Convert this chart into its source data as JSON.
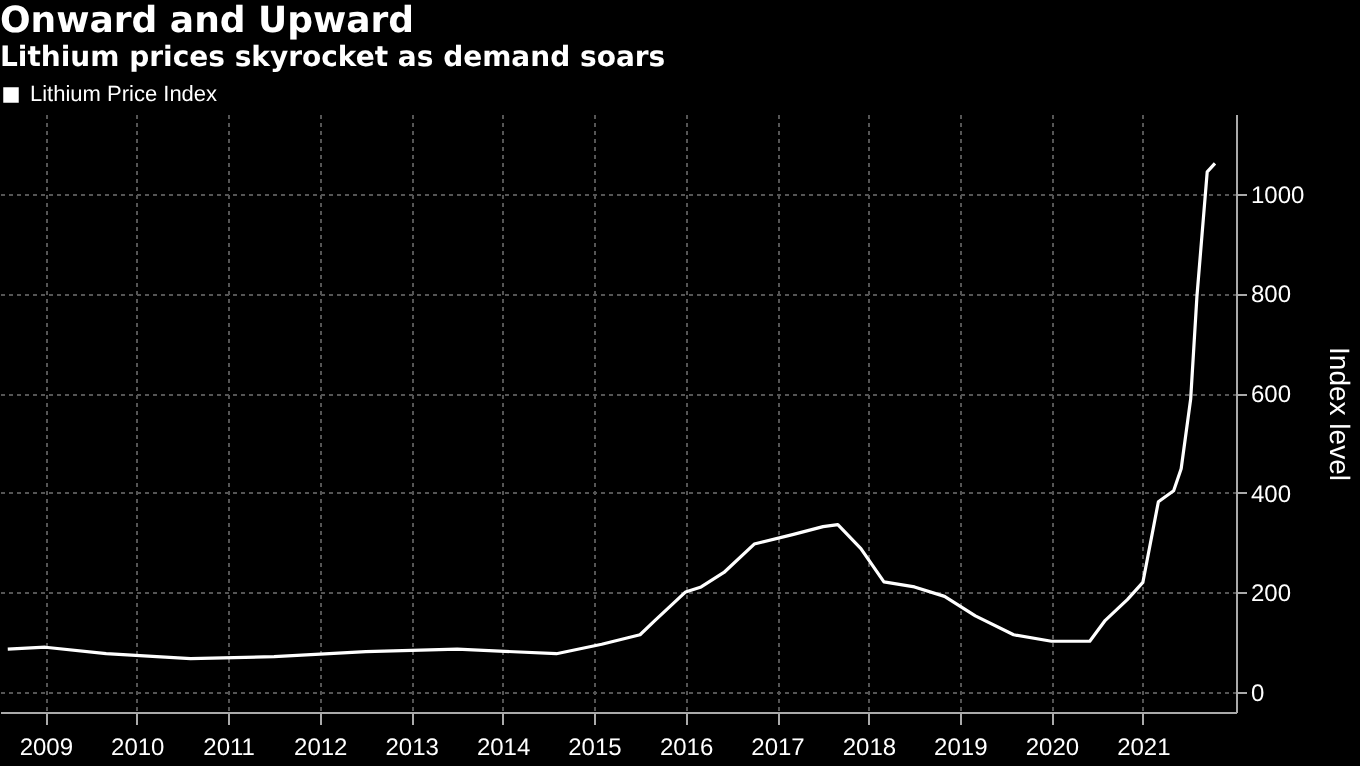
{
  "chart_data": {
    "type": "line",
    "title": "Onward and Upward",
    "subtitle": "Lithium prices skyrocket as demand soars",
    "ylabel": "Index level",
    "x": [
      "2009-02",
      "2009-07",
      "2010-03",
      "2011-02",
      "2012-01",
      "2013-01",
      "2014-01",
      "2015-02",
      "2015-08",
      "2016-01",
      "2016-03",
      "2016-07",
      "2016-09",
      "2016-12",
      "2017-04",
      "2017-09",
      "2018-01",
      "2018-03",
      "2018-06",
      "2018-09",
      "2019-01",
      "2019-05",
      "2019-09",
      "2020-02",
      "2020-07",
      "2020-12",
      "2021-02",
      "2021-05",
      "2021-07",
      "2021-09",
      "2021-11",
      "2021-12",
      "2022-01-08",
      "2022-02-02",
      "2022-03-15",
      "2022-04-15"
    ],
    "series": [
      {
        "name": "Lithium Price Index",
        "color": "#ffffff",
        "values": [
          86,
          90,
          77,
          67,
          71,
          81,
          86,
          77,
          96,
          115,
          144,
          201,
          211,
          240,
          297,
          316,
          332,
          336,
          288,
          221,
          211,
          192,
          153,
          115,
          102,
          102,
          144,
          186,
          220,
          382,
          404,
          448,
          588,
          794,
          1044,
          1061
        ]
      }
    ],
    "xlim": [
      "2009-01-01",
      "2022-07-08"
    ],
    "xticks": [
      {
        "value": "2009-07-01",
        "label": "2009"
      },
      {
        "value": "2010-07-01",
        "label": "2010"
      },
      {
        "value": "2011-07-01",
        "label": "2011"
      },
      {
        "value": "2012-07-01",
        "label": "2012"
      },
      {
        "value": "2013-07-01",
        "label": "2013"
      },
      {
        "value": "2014-07-01",
        "label": "2014"
      },
      {
        "value": "2015-07-01",
        "label": "2015"
      },
      {
        "value": "2016-07-01",
        "label": "2016"
      },
      {
        "value": "2017-07-01",
        "label": "2017"
      },
      {
        "value": "2018-07-01",
        "label": "2018"
      },
      {
        "value": "2019-07-01",
        "label": "2019"
      },
      {
        "value": "2020-07-01",
        "label": "2020"
      },
      {
        "value": "2021-07-01",
        "label": "2021"
      }
    ],
    "ylim": [
      -40,
      1160
    ],
    "yticks": [
      0,
      200,
      400,
      600,
      800,
      1000
    ],
    "grid": true,
    "legend": "top left",
    "marker": "none",
    "line_style": "solid"
  }
}
